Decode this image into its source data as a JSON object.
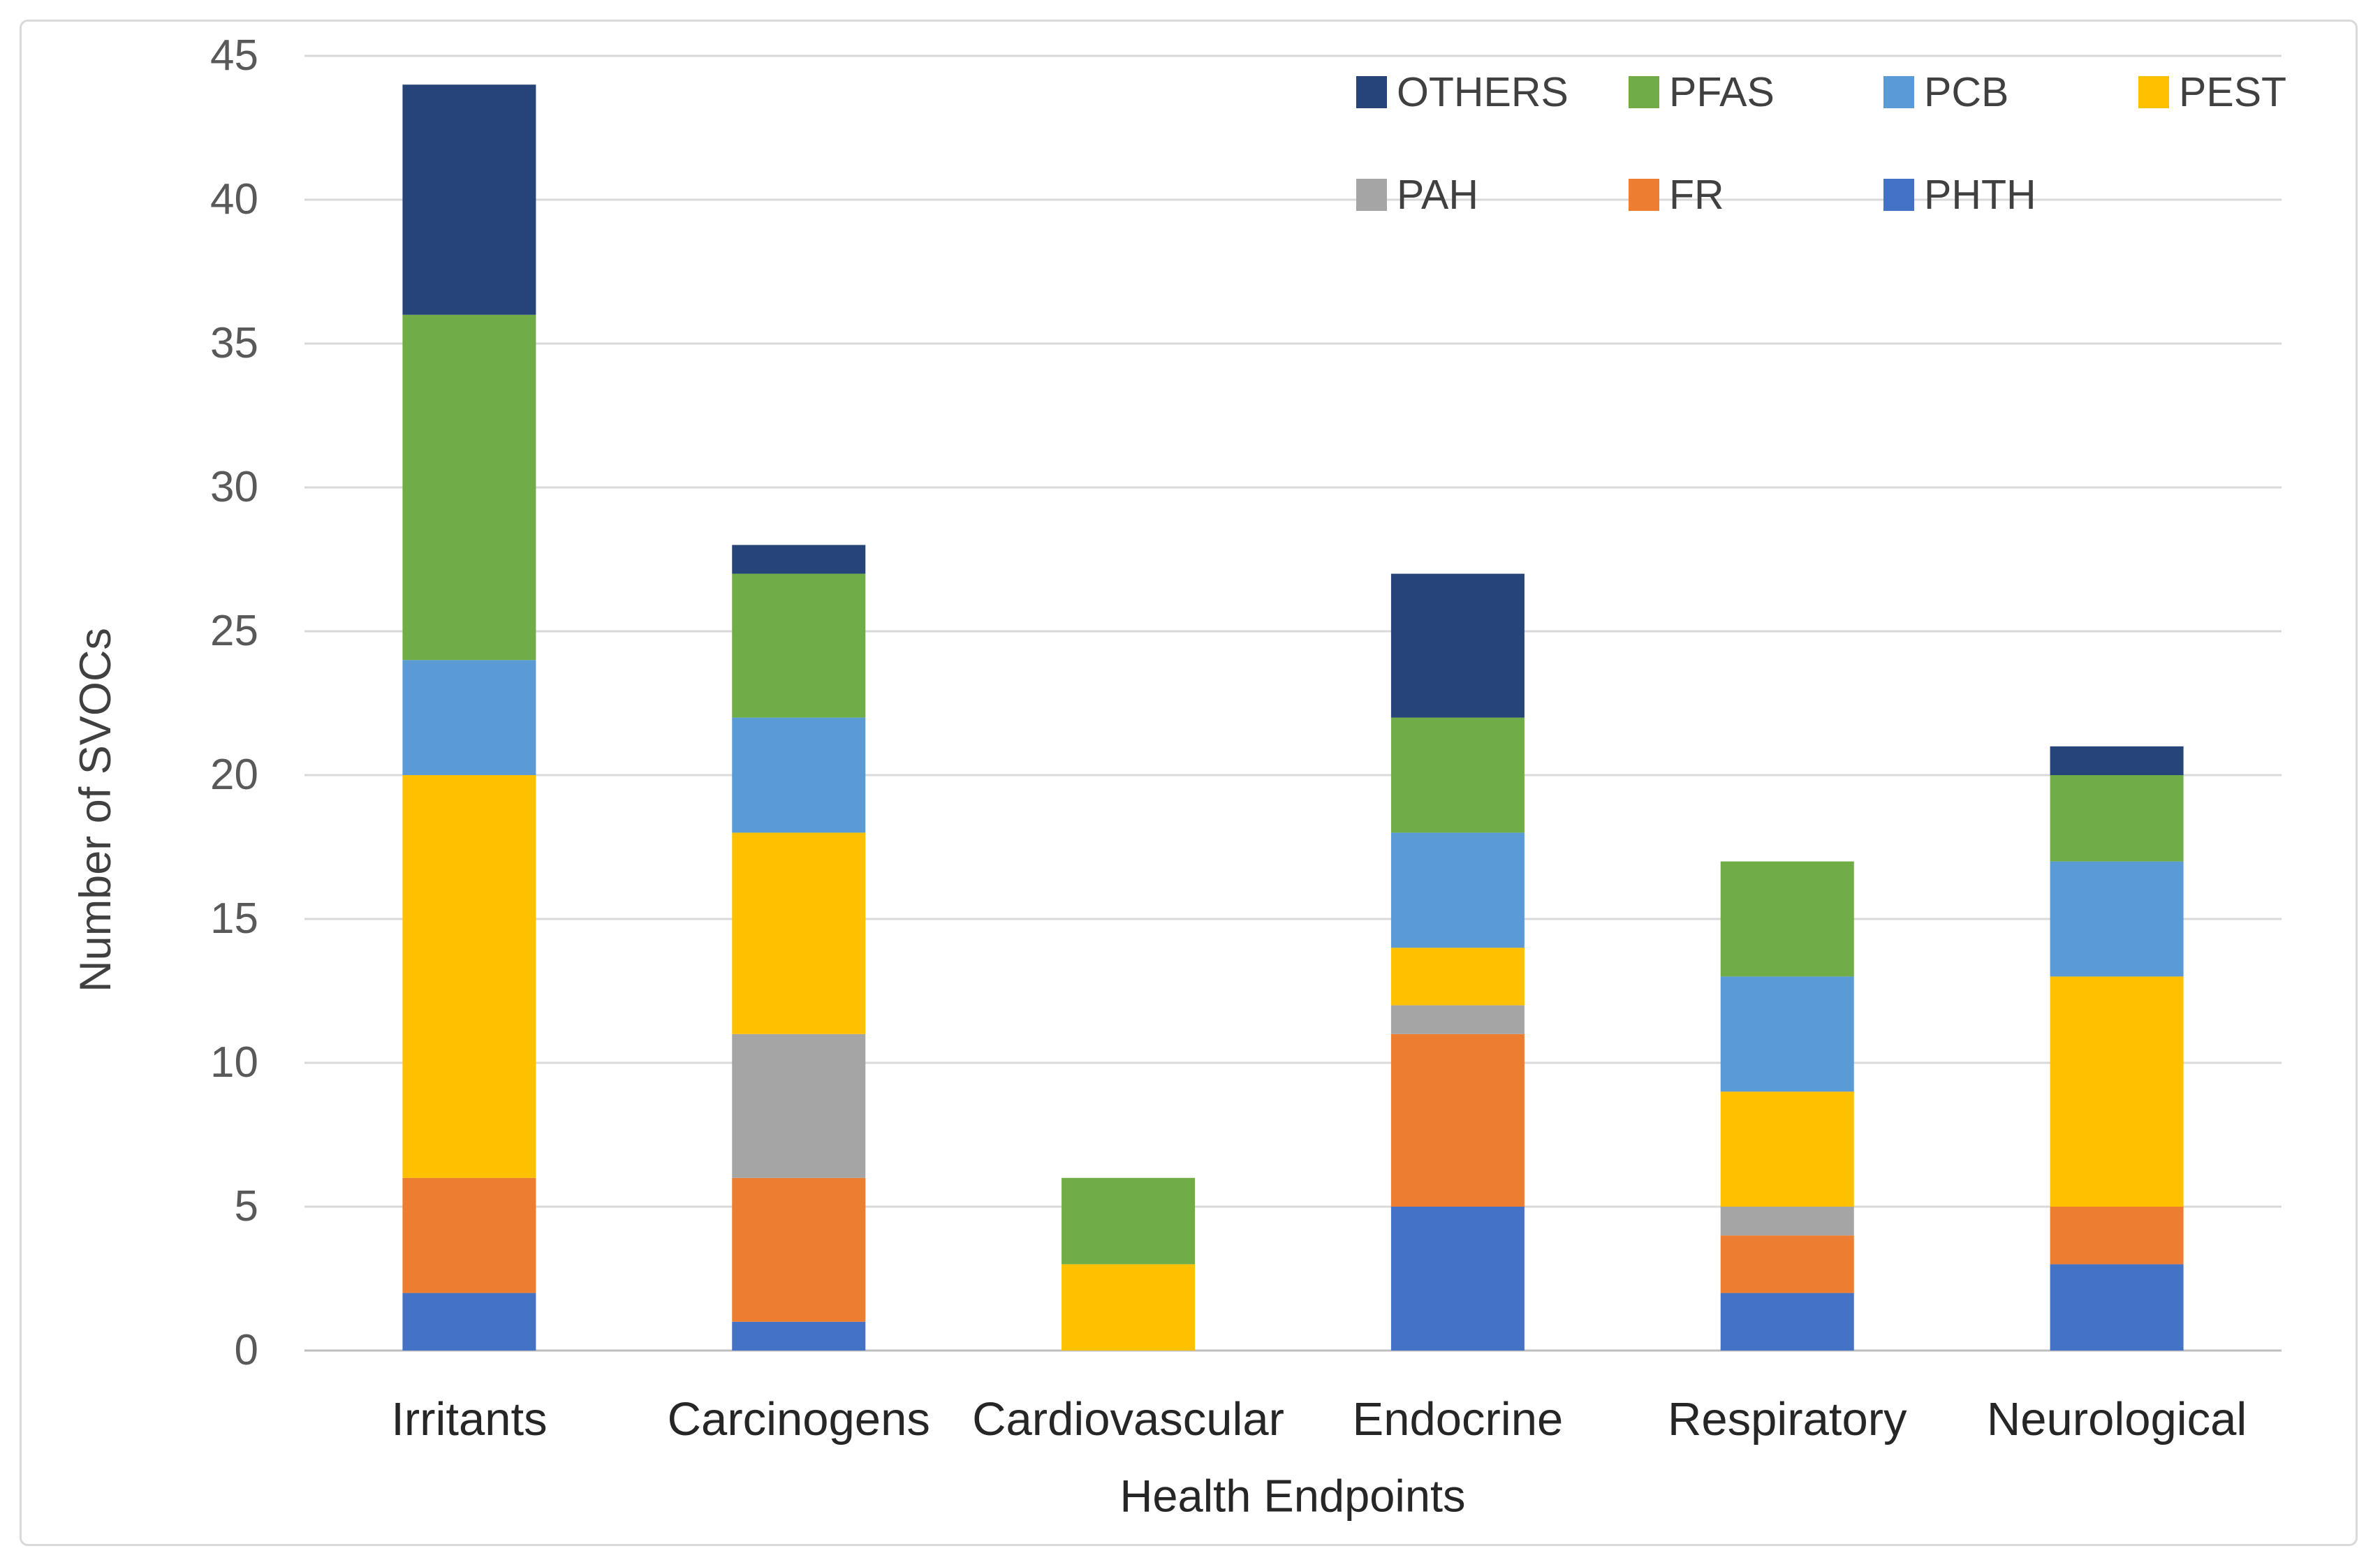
{
  "figure": {
    "background_color": "#FFFFFF",
    "border_color": "#D9D9D9"
  },
  "axis": {
    "tick_label_color": "#595959",
    "gridline_color": "#D9D9D9",
    "baseline_color": "#BFBFBF"
  },
  "chart_data": {
    "type": "bar",
    "stacked": true,
    "xlabel": "Health Endpoints",
    "ylabel": "Number of SVOCs",
    "categories": [
      "Irritants",
      "Carcinogens",
      "Cardiovascular",
      "Endocrine",
      "Respiratory",
      "Neurological"
    ],
    "series": [
      {
        "name": "PHTH",
        "color": "#4472C4",
        "values": [
          2,
          1,
          0,
          5,
          2,
          3
        ]
      },
      {
        "name": "FR",
        "color": "#ED7D31",
        "values": [
          4,
          5,
          0,
          6,
          2,
          2
        ]
      },
      {
        "name": "PAH",
        "color": "#A5A5A5",
        "values": [
          0,
          5,
          0,
          1,
          1,
          0
        ]
      },
      {
        "name": "PEST",
        "color": "#FFC000",
        "values": [
          14,
          7,
          3,
          2,
          4,
          8
        ]
      },
      {
        "name": "PCB",
        "color": "#5B9BD5",
        "values": [
          4,
          4,
          0,
          4,
          4,
          4
        ]
      },
      {
        "name": "PFAS",
        "color": "#70AD47",
        "values": [
          12,
          5,
          3,
          4,
          4,
          3
        ]
      },
      {
        "name": "OTHERS",
        "color": "#264478",
        "values": [
          8,
          1,
          0,
          5,
          0,
          1
        ]
      }
    ],
    "stack_order": "bottom-to-top",
    "ylim": [
      0,
      45
    ],
    "yticks": [
      0,
      5,
      10,
      15,
      20,
      25,
      30,
      35,
      40,
      45
    ],
    "grid": "horizontal",
    "legend": {
      "position": "top-right",
      "rows": [
        [
          "OTHERS",
          "PFAS",
          "PCB",
          "PEST"
        ],
        [
          "PAH",
          "FR",
          "PHTH"
        ]
      ]
    }
  }
}
